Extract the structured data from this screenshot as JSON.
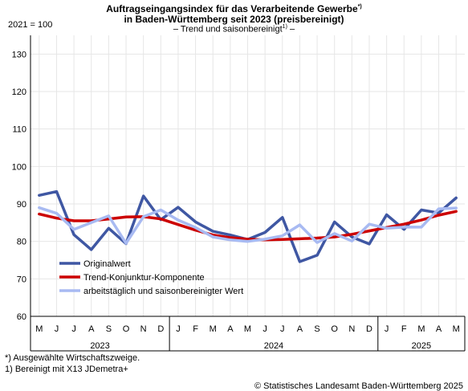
{
  "title_line1": "Auftragseingangsindex für das Verarbeitende Gewerbe",
  "title_line1_sup": "*)",
  "title_line2": "in Baden-Württemberg seit 2023 (preisbereinigt)",
  "subtitle": "– Trend und saisonbereinigt",
  "subtitle_sup": "1)",
  "subtitle_end": " –",
  "index_label": "2021 = 100",
  "footnote1": "*) Ausgewählte Wirtschaftszweige.",
  "footnote2": "1) Bereinigt mit X13 JDemetra+",
  "credit": "© Statistisches Landesamt Baden-Württemberg 2025",
  "colors": {
    "original": "#3f57a3",
    "trend": "#cc0000",
    "adjusted": "#a8baf2",
    "grid": "#e6e6e6",
    "axis": "#000000"
  },
  "chart_data": {
    "type": "line",
    "x_month_labels": [
      "M",
      "J",
      "J",
      "A",
      "S",
      "O",
      "N",
      "D",
      "J",
      "F",
      "M",
      "A",
      "M",
      "J",
      "J",
      "A",
      "S",
      "O",
      "N",
      "D",
      "J",
      "F",
      "M",
      "A",
      "M"
    ],
    "year_labels": [
      "2023",
      "2024",
      "2025"
    ],
    "year_spans": [
      [
        0,
        7
      ],
      [
        8,
        19
      ],
      [
        20,
        24
      ]
    ],
    "ylim": [
      60,
      135
    ],
    "yticks": [
      60,
      70,
      80,
      90,
      100,
      110,
      120,
      130
    ],
    "grid": true,
    "legend_position": "bottom-left",
    "series": [
      {
        "name": "Originalwert",
        "color_key": "original",
        "values": [
          92.3,
          93.3,
          81.8,
          77.8,
          83.5,
          79.4,
          92.1,
          85.8,
          89.1,
          85.2,
          82.7,
          81.7,
          80.5,
          82.4,
          86.4,
          74.6,
          76.3,
          85.2,
          81.2,
          79.3,
          87.1,
          83.2,
          88.4,
          87.6,
          91.6
        ]
      },
      {
        "name": "Trend-Konjunktur-Komponente",
        "color_key": "trend",
        "values": [
          87.3,
          86.2,
          85.5,
          85.5,
          86.0,
          86.5,
          86.6,
          86.0,
          84.5,
          83.0,
          81.7,
          81.0,
          80.6,
          80.4,
          80.5,
          80.7,
          80.9,
          81.2,
          81.9,
          82.8,
          83.7,
          84.6,
          85.7,
          87.0,
          88.0
        ]
      },
      {
        "name": "arbeitstäglich und saisonbereinigter Wert",
        "color_key": "adjusted",
        "values": [
          89.0,
          87.5,
          83.2,
          85.0,
          86.8,
          79.5,
          86.6,
          88.4,
          85.7,
          83.7,
          81.2,
          80.4,
          80.0,
          80.6,
          81.5,
          84.4,
          79.7,
          82.1,
          80.1,
          84.6,
          83.5,
          83.8,
          83.8,
          88.7,
          88.9
        ]
      }
    ]
  }
}
